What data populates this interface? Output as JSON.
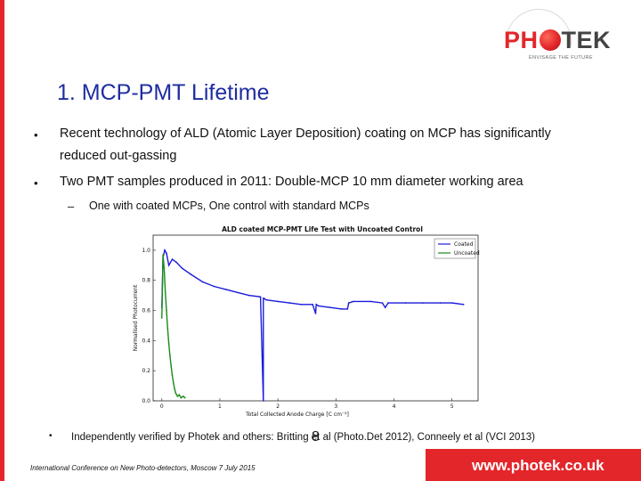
{
  "logo": {
    "text_ph": "PH",
    "text_tek": "TEK",
    "tagline": "ENVISAGE THE FUTURE"
  },
  "title": "1. MCP-PMT Lifetime",
  "bullets": [
    {
      "marker": "•",
      "lines": [
        "Recent technology of ALD (Atomic Layer Deposition) coating on MCP has significantly",
        "reduced out-gassing"
      ]
    },
    {
      "marker": "•",
      "lines": [
        "Two PMT samples produced in 2011: Double-MCP 10 mm diameter working area"
      ]
    }
  ],
  "sub_bullet": {
    "marker": "–",
    "text": "One with coated MCPs, One control with standard MCPs"
  },
  "note": {
    "marker": "•",
    "text": "Independently verified by Photek and others: Britting et al (Photo.Det 2012), Conneely et al (VCI 2013)"
  },
  "footer": {
    "conference": "International Conference on New Photo-detectors, Moscow 7 July 2015",
    "page_number": "8",
    "website": "www.photek.co.uk"
  },
  "colors": {
    "brand_red": "#e3262a",
    "title_blue": "#1f2da0",
    "coated_blue": "#1a1adb",
    "uncoated_green": "#1a8a1a"
  },
  "chart_data": {
    "type": "line",
    "title": "ALD coated MCP-PMT Life Test with Uncoated Control",
    "xlabel": "Total Collected Anode Charge [C cm⁻²]",
    "ylabel": "Normalised Photocurrent",
    "xlim": [
      -0.15,
      5.45
    ],
    "ylim": [
      0.0,
      1.1
    ],
    "xticks": [
      "0",
      "1",
      "2",
      "3",
      "4",
      "5"
    ],
    "yticks": [
      "0.0",
      "0.2",
      "0.4",
      "0.6",
      "0.8",
      "1.0"
    ],
    "legend_position": "top-right",
    "series": [
      {
        "name": "Coated",
        "x": [
          0.0,
          0.02,
          0.05,
          0.08,
          0.12,
          0.18,
          0.25,
          0.35,
          0.5,
          0.7,
          0.9,
          1.1,
          1.3,
          1.5,
          1.7,
          1.75,
          1.75,
          1.76,
          1.8,
          2.0,
          2.2,
          2.4,
          2.6,
          2.65,
          2.66,
          2.7,
          2.9,
          3.1,
          3.2,
          3.22,
          3.3,
          3.6,
          3.8,
          3.85,
          3.9,
          4.2,
          4.5,
          4.8,
          5.0,
          5.2
        ],
        "y": [
          0.62,
          0.95,
          1.0,
          0.98,
          0.9,
          0.94,
          0.92,
          0.88,
          0.84,
          0.79,
          0.76,
          0.74,
          0.72,
          0.7,
          0.69,
          0.0,
          0.68,
          0.68,
          0.67,
          0.66,
          0.65,
          0.64,
          0.64,
          0.58,
          0.64,
          0.63,
          0.62,
          0.61,
          0.61,
          0.65,
          0.66,
          0.66,
          0.65,
          0.62,
          0.65,
          0.65,
          0.65,
          0.65,
          0.65,
          0.64
        ]
      },
      {
        "name": "Uncoated",
        "x": [
          0.0,
          0.02,
          0.04,
          0.06,
          0.08,
          0.1,
          0.12,
          0.14,
          0.16,
          0.18,
          0.2,
          0.22,
          0.24,
          0.27,
          0.3,
          0.33,
          0.37,
          0.4
        ],
        "y": [
          0.55,
          0.97,
          0.88,
          0.72,
          0.6,
          0.48,
          0.38,
          0.3,
          0.23,
          0.17,
          0.12,
          0.08,
          0.05,
          0.03,
          0.04,
          0.02,
          0.03,
          0.02
        ]
      }
    ]
  }
}
